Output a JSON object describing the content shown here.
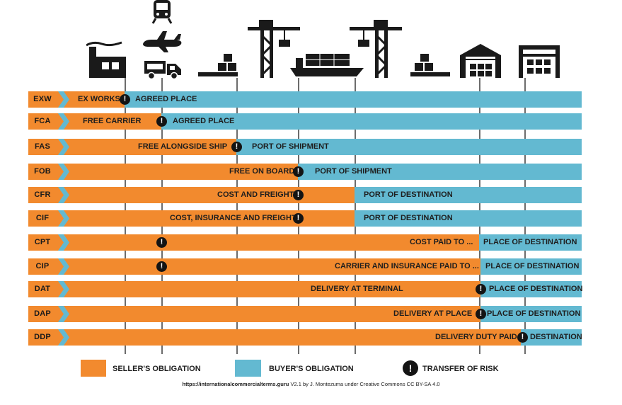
{
  "colors": {
    "seller": "#f28a2e",
    "buyer": "#63b9d1",
    "risk": "#141414",
    "grid": "#6c6c6c"
  },
  "transport_icons": [
    "factory-icon",
    "train-icon",
    "plane-icon",
    "truck-icon",
    "pallet-icon",
    "crane-icon",
    "ship-icon",
    "crane-icon",
    "pallet-icon",
    "warehouse-icon",
    "warehouse-icon"
  ],
  "rows": [
    {
      "code": "EXW",
      "seller_text": "EX WORKS",
      "buyer_text": "AGREED PLACE"
    },
    {
      "code": "FCA",
      "seller_text": "FREE CARRIER",
      "buyer_text": "AGREED PLACE"
    },
    {
      "code": "FAS",
      "seller_text": "FREE ALONGSIDE SHIP",
      "buyer_text": "PORT OF SHIPMENT"
    },
    {
      "code": "FOB",
      "seller_text": "FREE ON BOARD",
      "buyer_text": "PORT OF SHIPMENT"
    },
    {
      "code": "CFR",
      "seller_text": "COST AND FREIGHT",
      "buyer_text": "PORT OF DESTINATION"
    },
    {
      "code": "CIF",
      "seller_text": "COST, INSURANCE AND FREIGHT",
      "buyer_text": "PORT OF DESTINATION"
    },
    {
      "code": "CPT",
      "seller_text": "COST PAID TO ...",
      "buyer_text": "PLACE OF DESTINATION"
    },
    {
      "code": "CIP",
      "seller_text": "CARRIER AND INSURANCE PAID TO ...",
      "buyer_text": "PLACE OF DESTINATION"
    },
    {
      "code": "DAT",
      "seller_text": "DELIVERY AT TERMINAL",
      "buyer_text": "PLACE OF DESTINATION"
    },
    {
      "code": "DAP",
      "seller_text": "DELIVERY AT PLACE",
      "buyer_text": "PLACE OF DESTINATION"
    },
    {
      "code": "DDP",
      "seller_text": "DELIVERY DUTY PAID",
      "buyer_text": "DESTINATION"
    }
  ],
  "risk_symbol": "!",
  "legend": {
    "seller": "SELLER'S OBLIGATION",
    "buyer": "BUYER'S OBLIGATION",
    "risk": "TRANSFER OF RISK"
  },
  "credit": {
    "url": "https://internationalcommercialterms.guru",
    "rest": " V2.1 by J. Montezuma under Creative Commons CC BY-SA 4.0"
  }
}
